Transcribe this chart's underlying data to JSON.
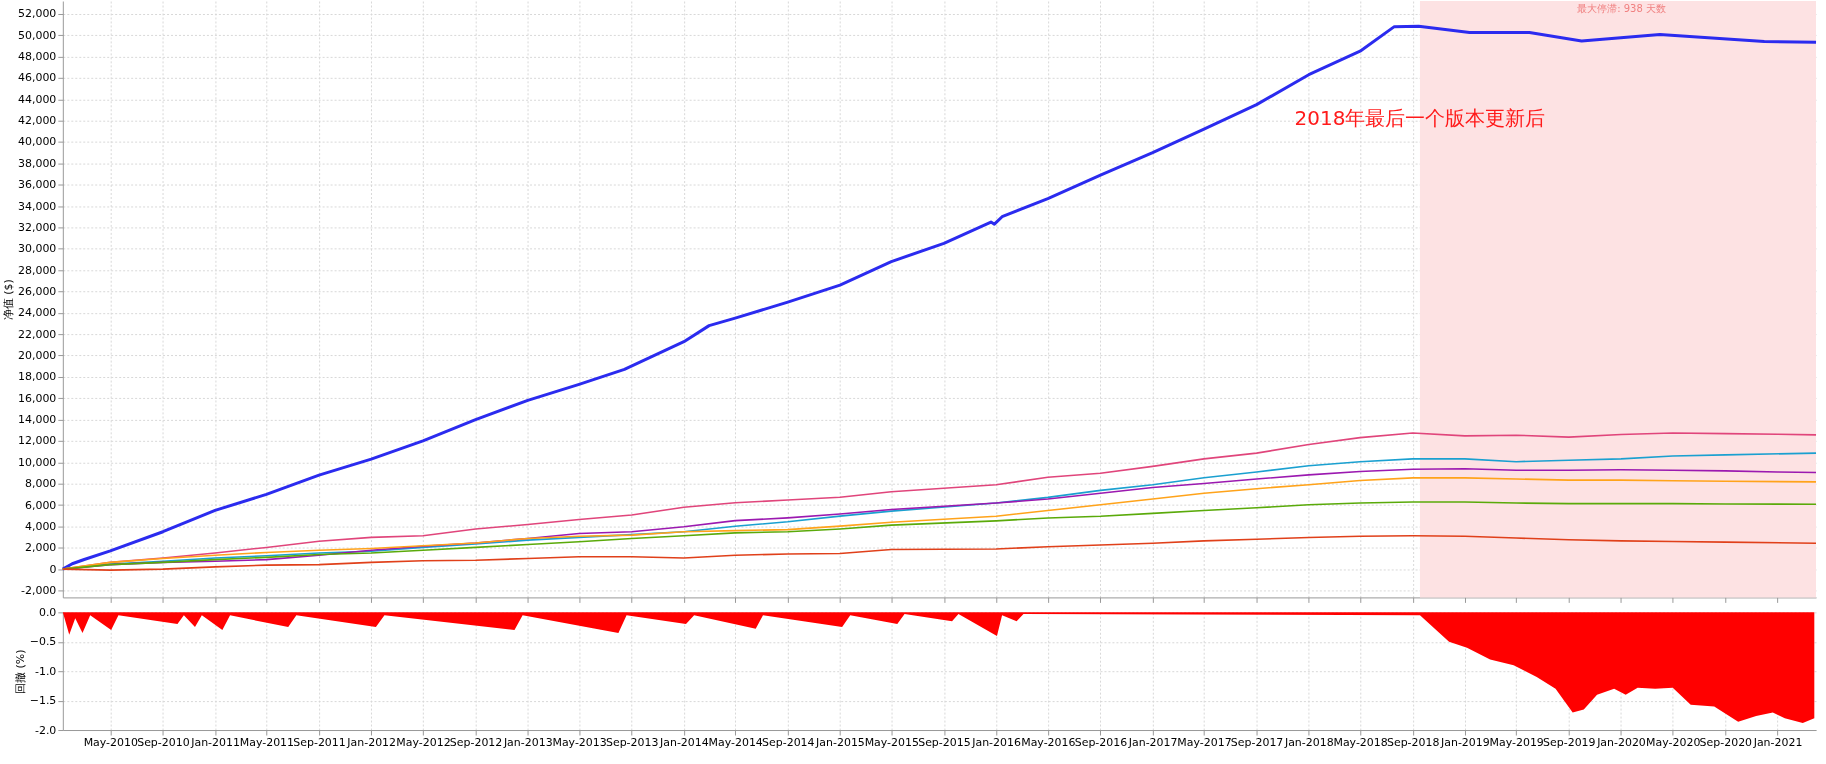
{
  "chart_data": [
    {
      "type": "line",
      "ylabel": "净值 ($)",
      "xlim": [
        "2010-01-10",
        "2021-04-01"
      ],
      "ylim": [
        -2650,
        53200
      ],
      "yticks": [
        {
          "value": -2000,
          "label": "-2,000"
        },
        0,
        {
          "value": 2000,
          "label": "2,000"
        },
        {
          "value": 4000,
          "label": "4,000"
        },
        {
          "value": 6000,
          "label": "6,000"
        },
        {
          "value": 8000,
          "label": "8,000"
        },
        {
          "value": 10000,
          "label": "10,000"
        },
        {
          "value": 12000,
          "label": "12,000"
        },
        {
          "value": 14000,
          "label": "14,000"
        },
        {
          "value": 16000,
          "label": "16,000"
        },
        {
          "value": 18000,
          "label": "18,000"
        },
        {
          "value": 20000,
          "label": "20,000"
        },
        {
          "value": 22000,
          "label": "22,000"
        },
        {
          "value": 24000,
          "label": "24,000"
        },
        {
          "value": 26000,
          "label": "26,000"
        },
        {
          "value": 28000,
          "label": "28,000"
        },
        {
          "value": 30000,
          "label": "30,000"
        },
        {
          "value": 32000,
          "label": "32,000"
        },
        {
          "value": 34000,
          "label": "34,000"
        },
        {
          "value": 36000,
          "label": "36,000"
        },
        {
          "value": 38000,
          "label": "38,000"
        },
        {
          "value": 40000,
          "label": "40,000"
        },
        {
          "value": 42000,
          "label": "42,000"
        },
        {
          "value": 44000,
          "label": "44,000"
        },
        {
          "value": 46000,
          "label": "46,000"
        },
        {
          "value": 48000,
          "label": "48,000"
        },
        {
          "value": 50000,
          "label": "50,000"
        },
        {
          "value": 52000,
          "label": "52,000"
        }
      ],
      "xticks": [
        {
          "value": "2010-05-01",
          "label": null
        },
        {
          "value": "2010-09-01",
          "label": null
        },
        {
          "value": "2011-01-01",
          "label": null
        },
        {
          "value": "2011-05-01",
          "label": null
        },
        {
          "value": "2011-09-01",
          "label": null
        },
        {
          "value": "2012-01-01",
          "label": null
        },
        {
          "value": "2012-05-01",
          "label": null
        },
        {
          "value": "2012-09-01",
          "label": null
        },
        {
          "value": "2013-01-01",
          "label": null
        },
        {
          "value": "2013-05-01",
          "label": null
        },
        {
          "value": "2013-09-01",
          "label": null
        },
        {
          "value": "2014-01-01",
          "label": null
        },
        {
          "value": "2014-05-01",
          "label": null
        },
        {
          "value": "2014-09-01",
          "label": null
        },
        {
          "value": "2015-01-01",
          "label": null
        },
        {
          "value": "2015-05-01",
          "label": null
        },
        {
          "value": "2015-09-01",
          "label": null
        },
        {
          "value": "2016-01-01",
          "label": null
        },
        {
          "value": "2016-05-01",
          "label": null
        },
        {
          "value": "2016-09-01",
          "label": null
        },
        {
          "value": "2017-01-01",
          "label": null
        },
        {
          "value": "2017-05-01",
          "label": null
        },
        {
          "value": "2017-09-01",
          "label": null
        },
        {
          "value": "2018-01-01",
          "label": null
        },
        {
          "value": "2018-05-01",
          "label": null
        },
        {
          "value": "2018-09-01",
          "label": null
        },
        {
          "value": "2019-01-01",
          "label": null
        },
        {
          "value": "2019-05-01",
          "label": null
        },
        {
          "value": "2019-09-01",
          "label": null
        },
        {
          "value": "2020-01-01",
          "label": null
        },
        {
          "value": "2020-05-01",
          "label": null
        },
        {
          "value": "2020-09-01",
          "label": null
        },
        {
          "value": "2021-01-01",
          "label": null
        }
      ],
      "grid": true,
      "tick_labels": "y",
      "bands": [
        {
          "axis": "x",
          "from": "2018-09-18",
          "to": "2021-04-01",
          "label": "2018年最后一个版本更新后",
          "color": "#fde2e3"
        }
      ],
      "annotations": [
        "最大停滞: 938 天数"
      ],
      "series": [
        {
          "color": "#2b2bef",
          "x": [
            "2010-01-10",
            "2010-02-01",
            "2010-03-01",
            "2010-05-01",
            "2010-09-01",
            "2011-01-01",
            "2011-05-01",
            "2011-09-01",
            "2012-01-01",
            "2012-05-01",
            "2012-09-01",
            "2013-01-01",
            "2013-05-01",
            "2013-08-15",
            "2014-01-01",
            "2014-03-01",
            "2014-05-01",
            "2014-09-01",
            "2015-01-01",
            "2015-05-01",
            "2015-09-01",
            "2015-12-20",
            "2015-12-28",
            "2016-01-15",
            "2016-05-01",
            "2016-09-01",
            "2017-01-01",
            "2017-05-01",
            "2017-09-01",
            "2018-01-01",
            "2018-05-01",
            "2018-07-20",
            "2018-09-15",
            "2019-01-12",
            "2019-06-01",
            "2019-10-01",
            "2020-04-01",
            "2020-12-01",
            "2021-04-01"
          ],
          "values": [
            0,
            500,
            900,
            1700,
            3500,
            5500,
            7000,
            8800,
            10300,
            12000,
            14000,
            15800,
            17300,
            18700,
            21300,
            22800,
            23500,
            25000,
            26600,
            28800,
            30500,
            32500,
            32300,
            33000,
            34700,
            36900,
            39000,
            41200,
            43500,
            46300,
            48500,
            50800,
            50830,
            50250,
            50250,
            49450,
            50060,
            49400,
            49330
          ]
        },
        {
          "color": "#e0457b",
          "x": [
            "2010-01-10",
            "2010-05-01",
            "2010-09-01",
            "2011-01-01",
            "2011-05-01",
            "2011-09-01",
            "2012-01-01",
            "2012-05-01",
            "2012-09-01",
            "2013-01-01",
            "2013-05-01",
            "2013-09-01",
            "2014-01-01",
            "2014-05-01",
            "2014-09-01",
            "2015-01-01",
            "2015-05-01",
            "2016-01-01",
            "2016-05-01",
            "2016-09-01",
            "2017-01-01",
            "2017-05-01",
            "2017-09-01",
            "2018-01-01",
            "2018-05-01",
            "2018-09-01",
            "2019-01-01",
            "2019-05-01",
            "2019-09-01",
            "2020-01-01",
            "2020-05-01",
            "2020-09-01",
            "2021-01-01",
            "2021-04-01"
          ],
          "values": [
            0,
            630,
            1040,
            1510,
            2030,
            2610,
            2970,
            3130,
            3760,
            4170,
            4640,
            5060,
            5790,
            6210,
            6470,
            6730,
            7250,
            7900,
            8600,
            8980,
            9620,
            10320,
            10860,
            11670,
            12310,
            12740,
            12480,
            12540,
            12360,
            12600,
            12740,
            12690,
            12630,
            12570
          ]
        },
        {
          "color": "#1aa0d0",
          "x": [
            "2010-01-10",
            "2010-05-01",
            "2010-09-01",
            "2011-01-01",
            "2011-05-01",
            "2011-09-01",
            "2012-01-01",
            "2012-05-01",
            "2012-09-01",
            "2013-01-01",
            "2013-05-01",
            "2013-09-01",
            "2014-01-01",
            "2014-05-01",
            "2014-09-01",
            "2015-01-01",
            "2015-05-01",
            "2016-01-01",
            "2016-05-01",
            "2016-09-01",
            "2017-01-01",
            "2017-05-01",
            "2017-09-01",
            "2018-01-01",
            "2018-05-01",
            "2018-09-01",
            "2019-01-01",
            "2019-05-01",
            "2019-09-01",
            "2020-01-01",
            "2020-05-01",
            "2020-09-01",
            "2021-04-01"
          ],
          "values": [
            0,
            470,
            730,
            1040,
            1250,
            1510,
            1670,
            2030,
            2350,
            2710,
            2970,
            3230,
            3500,
            4020,
            4430,
            4960,
            5430,
            6190,
            6720,
            7370,
            7900,
            8550,
            9090,
            9680,
            10060,
            10320,
            10320,
            10060,
            10200,
            10320,
            10590,
            10700,
            10860
          ]
        },
        {
          "color": "#9b19b0",
          "x": [
            "2010-01-10",
            "2010-05-01",
            "2010-09-01",
            "2011-01-01",
            "2011-05-01",
            "2011-09-01",
            "2012-01-01",
            "2012-05-01",
            "2012-09-01",
            "2013-01-01",
            "2013-05-01",
            "2013-09-01",
            "2014-01-01",
            "2014-05-01",
            "2014-09-01",
            "2015-01-01",
            "2015-05-01",
            "2016-01-01",
            "2016-05-01",
            "2016-09-01",
            "2017-01-01",
            "2017-05-01",
            "2017-09-01",
            "2018-01-01",
            "2018-05-01",
            "2018-09-01",
            "2019-01-01",
            "2019-05-01",
            "2019-09-01",
            "2020-01-01",
            "2020-05-01",
            "2020-09-01",
            "2021-01-01",
            "2021-04-01"
          ],
          "values": [
            0,
            420,
            630,
            730,
            890,
            1300,
            1770,
            2140,
            2450,
            2870,
            3340,
            3500,
            3960,
            4540,
            4800,
            5160,
            5580,
            6190,
            6560,
            7100,
            7640,
            8010,
            8440,
            8820,
            9140,
            9350,
            9400,
            9250,
            9250,
            9300,
            9250,
            9200,
            9090,
            9040
          ]
        },
        {
          "color": "#ffa31a",
          "x": [
            "2010-01-10",
            "2010-05-01",
            "2010-09-01",
            "2011-01-01",
            "2011-05-01",
            "2011-09-01",
            "2012-01-01",
            "2012-05-01",
            "2012-09-01",
            "2013-01-01",
            "2013-05-01",
            "2013-09-01",
            "2014-01-01",
            "2014-05-01",
            "2014-09-01",
            "2015-01-01",
            "2015-05-01",
            "2016-01-01",
            "2016-05-01",
            "2016-09-01",
            "2017-01-01",
            "2017-05-01",
            "2017-09-01",
            "2018-01-01",
            "2018-05-01",
            "2018-09-01",
            "2019-01-01",
            "2019-05-01",
            "2019-09-01",
            "2020-01-01",
            "2020-05-01",
            "2020-09-01",
            "2021-04-01"
          ],
          "values": [
            0,
            630,
            990,
            1300,
            1560,
            1770,
            1930,
            2190,
            2450,
            2870,
            3080,
            3180,
            3500,
            3600,
            3700,
            4020,
            4380,
            4950,
            5490,
            6020,
            6560,
            7100,
            7530,
            7900,
            8290,
            8540,
            8540,
            8440,
            8330,
            8330,
            8280,
            8220,
            8170
          ]
        },
        {
          "color": "#5aaa0a",
          "x": [
            "2010-01-10",
            "2010-05-01",
            "2010-09-01",
            "2011-01-01",
            "2011-05-01",
            "2011-09-01",
            "2012-01-01",
            "2012-05-01",
            "2012-09-01",
            "2013-01-01",
            "2013-05-01",
            "2013-09-01",
            "2014-01-01",
            "2014-05-01",
            "2014-09-01",
            "2015-01-01",
            "2015-05-01",
            "2016-01-01",
            "2016-05-01",
            "2016-09-01",
            "2017-01-01",
            "2017-05-01",
            "2017-09-01",
            "2018-01-01",
            "2018-05-01",
            "2018-09-01",
            "2019-01-01",
            "2019-05-01",
            "2019-09-01",
            "2020-01-01",
            "2020-05-01",
            "2020-09-01",
            "2021-04-01"
          ],
          "values": [
            0,
            420,
            630,
            890,
            1100,
            1360,
            1510,
            1770,
            2030,
            2300,
            2560,
            2870,
            3130,
            3390,
            3500,
            3760,
            4120,
            4520,
            4790,
            4950,
            5220,
            5490,
            5750,
            6020,
            6190,
            6290,
            6290,
            6190,
            6130,
            6130,
            6130,
            6100,
            6080
          ]
        },
        {
          "color": "#e0401a",
          "x": [
            "2010-01-10",
            "2010-05-01",
            "2010-09-01",
            "2011-01-01",
            "2011-05-01",
            "2011-09-01",
            "2012-01-01",
            "2012-05-01",
            "2012-09-01",
            "2013-01-01",
            "2013-05-01",
            "2013-09-01",
            "2014-01-01",
            "2014-05-01",
            "2014-09-01",
            "2015-01-01",
            "2015-05-01",
            "2016-01-01",
            "2016-05-01",
            "2016-09-01",
            "2017-01-01",
            "2017-05-01",
            "2017-09-01",
            "2018-01-01",
            "2018-05-01",
            "2018-09-01",
            "2019-01-01",
            "2019-05-01",
            "2019-09-01",
            "2020-01-01",
            "2020-05-01",
            "2020-09-01",
            "2021-04-01"
          ],
          "values": [
            0,
            -100,
            0,
            210,
            370,
            420,
            630,
            780,
            830,
            990,
            1150,
            1150,
            1040,
            1300,
            1410,
            1460,
            1830,
            1880,
            2100,
            2260,
            2420,
            2640,
            2800,
            2960,
            3070,
            3120,
            3070,
            2910,
            2750,
            2640,
            2590,
            2530,
            2420
          ]
        }
      ]
    },
    {
      "type": "area",
      "ylabel": "回撤 (%)",
      "xlim": [
        "2010-01-10",
        "2021-04-01"
      ],
      "ylim": [
        -2.0,
        0.0
      ],
      "yticks": [
        {
          "value": -2.0,
          "label": "-2.0"
        },
        -1.5,
        {
          "value": -1.0,
          "label": "-1.0"
        },
        -0.5,
        {
          "value": 0.0,
          "label": "0.0"
        }
      ],
      "xticks": [
        {
          "value": "2010-05-01",
          "label": "May-2010"
        },
        {
          "value": "2010-09-01",
          "label": "Sep-2010"
        },
        {
          "value": "2011-01-01",
          "label": "Jan-2011"
        },
        {
          "value": "2011-05-01",
          "label": "May-2011"
        },
        {
          "value": "2011-09-01",
          "label": "Sep-2011"
        },
        {
          "value": "2012-01-01",
          "label": "Jan-2012"
        },
        {
          "value": "2012-05-01",
          "label": "May-2012"
        },
        {
          "value": "2012-09-01",
          "label": "Sep-2012"
        },
        {
          "value": "2013-01-01",
          "label": "Jan-2013"
        },
        {
          "value": "2013-05-01",
          "label": "May-2013"
        },
        {
          "value": "2013-09-01",
          "label": "Sep-2013"
        },
        {
          "value": "2014-01-01",
          "label": "Jan-2014"
        },
        {
          "value": "2014-05-01",
          "label": "May-2014"
        },
        {
          "value": "2014-09-01",
          "label": "Sep-2014"
        },
        {
          "value": "2015-01-01",
          "label": "Jan-2015"
        },
        {
          "value": "2015-05-01",
          "label": "May-2015"
        },
        {
          "value": "2015-09-01",
          "label": "Sep-2015"
        },
        {
          "value": "2016-01-01",
          "label": "Jan-2016"
        },
        {
          "value": "2016-05-01",
          "label": "May-2016"
        },
        {
          "value": "2016-09-01",
          "label": "Sep-2016"
        },
        {
          "value": "2017-01-01",
          "label": "Jan-2017"
        },
        {
          "value": "2017-05-01",
          "label": "May-2017"
        },
        {
          "value": "2017-09-01",
          "label": "Sep-2017"
        },
        {
          "value": "2018-01-01",
          "label": "Jan-2018"
        },
        {
          "value": "2018-05-01",
          "label": "May-2018"
        },
        {
          "value": "2018-09-01",
          "label": "Sep-2018"
        },
        {
          "value": "2019-01-01",
          "label": "Jan-2019"
        },
        {
          "value": "2019-05-01",
          "label": "May-2019"
        },
        {
          "value": "2019-09-01",
          "label": "Sep-2019"
        },
        {
          "value": "2020-01-01",
          "label": "Jan-2020"
        },
        {
          "value": "2020-05-01",
          "label": "May-2020"
        },
        {
          "value": "2020-09-01",
          "label": "Sep-2020"
        },
        {
          "value": "2021-01-01",
          "label": "Jan-2021"
        }
      ],
      "grid": true,
      "series": [
        {
          "color": "#ff0000",
          "x": [
            "2010-01-10",
            "2010-01-25",
            "2010-02-08",
            "2010-02-25",
            "2010-03-15",
            "2010-05-03",
            "2010-05-20",
            "2010-10-05",
            "2010-10-20",
            "2010-11-15",
            "2010-12-01",
            "2011-01-18",
            "2011-02-05",
            "2011-06-21",
            "2011-07-10",
            "2012-01-12",
            "2012-02-01",
            "2012-12-01",
            "2012-12-20",
            "2013-08-01",
            "2013-08-20",
            "2014-01-06",
            "2014-01-25",
            "2014-06-18",
            "2014-07-05",
            "2015-01-06",
            "2015-01-25",
            "2015-05-15",
            "2015-06-01",
            "2015-09-20",
            "2015-10-05",
            "2016-01-03",
            "2016-01-15",
            "2016-02-18",
            "2016-03-05",
            "2018-09-18",
            "2018-11-25",
            "2019-01-06",
            "2019-03-01",
            "2019-04-25",
            "2019-06-18",
            "2019-08-01",
            "2019-09-10",
            "2019-10-06",
            "2019-11-06",
            "2019-12-16",
            "2020-01-12",
            "2020-02-09",
            "2020-03-21",
            "2020-05-01",
            "2020-06-12",
            "2020-08-06",
            "2020-10-01",
            "2020-11-12",
            "2020-12-21",
            "2021-01-18",
            "2021-03-01",
            "2021-03-28"
          ],
          "values": [
            0,
            -0.38,
            -0.1,
            -0.35,
            -0.05,
            -0.3,
            -0.05,
            -0.2,
            -0.05,
            -0.25,
            -0.05,
            -0.3,
            -0.05,
            -0.25,
            -0.05,
            -0.25,
            -0.05,
            -0.3,
            -0.05,
            -0.35,
            -0.05,
            -0.2,
            -0.05,
            -0.28,
            -0.05,
            -0.25,
            -0.05,
            -0.2,
            -0.03,
            -0.15,
            -0.03,
            -0.4,
            -0.05,
            -0.15,
            -0.03,
            -0.05,
            -0.5,
            -0.6,
            -0.8,
            -0.9,
            -1.1,
            -1.3,
            -1.7,
            -1.65,
            -1.4,
            -1.3,
            -1.4,
            -1.28,
            -1.3,
            -1.28,
            -1.57,
            -1.6,
            -1.86,
            -1.76,
            -1.7,
            -1.8,
            -1.88,
            -1.8
          ]
        }
      ]
    }
  ]
}
